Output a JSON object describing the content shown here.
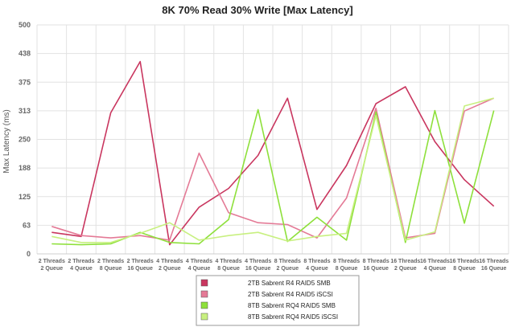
{
  "chart_data": {
    "type": "line",
    "title": "8K 70% Read 30% Write [Max Latency]",
    "ylabel": "Max Latency (ms)",
    "xlabel": "",
    "ylim": [
      0,
      500
    ],
    "yticks": [
      "0",
      "63",
      "125",
      "188",
      "250",
      "313",
      "375",
      "438",
      "500"
    ],
    "ytick_values": [
      0,
      62.5,
      125,
      187.5,
      250,
      312.5,
      375,
      437.5,
      500
    ],
    "grid": true,
    "legend_position": "bottom-center",
    "categories": [
      [
        "2 Threads",
        "2 Queue"
      ],
      [
        "2 Threads",
        "4 Queue"
      ],
      [
        "2 Threads",
        "8 Queue"
      ],
      [
        "2 Threads",
        "16 Queue"
      ],
      [
        "4 Threads",
        "2 Queue"
      ],
      [
        "4 Threads",
        "4 Queue"
      ],
      [
        "4 Threads",
        "8 Queue"
      ],
      [
        "4 Threads",
        "16 Queue"
      ],
      [
        "8 Threads",
        "2 Queue"
      ],
      [
        "8 Threads",
        "4 Queue"
      ],
      [
        "8 Threads",
        "8 Queue"
      ],
      [
        "8 Threads",
        "16 Queue"
      ],
      [
        "16 Threads",
        "2 Queue"
      ],
      [
        "16 Threads",
        "4 Queue"
      ],
      [
        "16 Threads",
        "8 Queue"
      ],
      [
        "16 Threads",
        "16 Queue"
      ]
    ],
    "series": [
      {
        "name": "2TB Sabrent R4 RAID5 SMB",
        "color": "#c9365f",
        "values": [
          47,
          38,
          308,
          420,
          20,
          102,
          143,
          215,
          340,
          97,
          193,
          328,
          365,
          245,
          162,
          104
        ]
      },
      {
        "name": "2TB Sabrent R4 RAID5 iSCSI",
        "color": "#e47a96",
        "values": [
          60,
          40,
          35,
          40,
          30,
          220,
          90,
          68,
          64,
          35,
          122,
          318,
          35,
          45,
          312,
          340
        ]
      },
      {
        "name": "8TB Sabrent RQ4 RAID5 SMB",
        "color": "#8ee03b",
        "values": [
          22,
          20,
          22,
          47,
          25,
          22,
          75,
          315,
          27,
          80,
          30,
          310,
          25,
          313,
          67,
          313
        ]
      },
      {
        "name": "8TB Sabrent RQ4 RAID5 iSCSI",
        "color": "#c8f080",
        "values": [
          38,
          25,
          25,
          45,
          68,
          30,
          40,
          47,
          28,
          38,
          45,
          302,
          30,
          48,
          323,
          340
        ]
      }
    ]
  }
}
